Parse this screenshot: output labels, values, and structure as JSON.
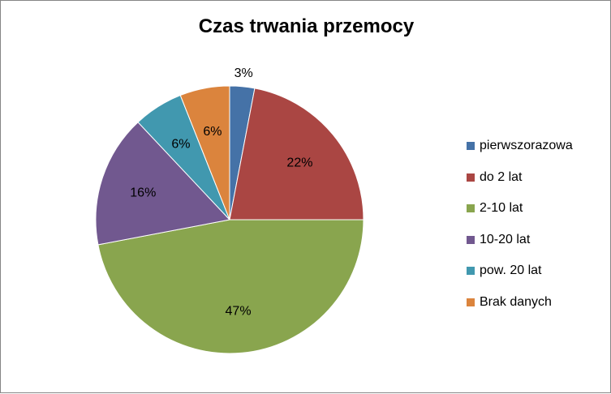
{
  "chart_data": {
    "type": "pie",
    "title": "Czas trwania przemocy",
    "categories": [
      "pierwszorazowa",
      "do 2 lat",
      "2-10 lat",
      "10-20 lat",
      "pow. 20 lat",
      "Brak danych"
    ],
    "values": [
      3,
      22,
      47,
      16,
      6,
      6
    ],
    "data_labels": [
      "3%",
      "22%",
      "47%",
      "16%",
      "6%",
      "6%"
    ],
    "colors": [
      "#4572A7",
      "#AA4643",
      "#89A54E",
      "#71588F",
      "#4198AF",
      "#DB843D"
    ],
    "legend_position": "right",
    "start_angle": "top, clockwise"
  }
}
